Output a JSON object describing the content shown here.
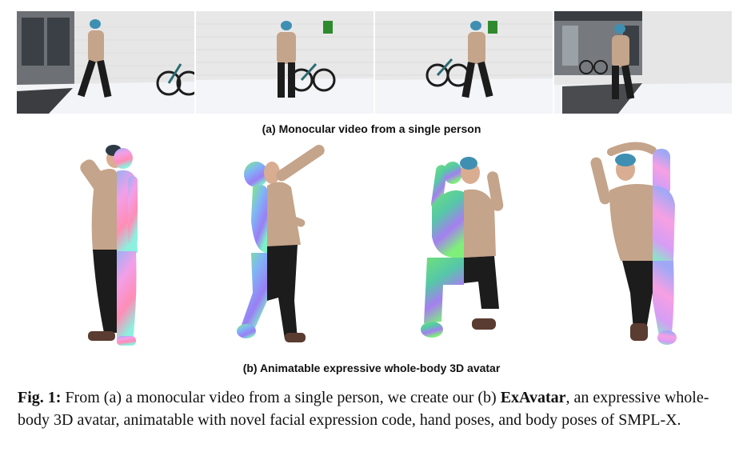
{
  "subcaption_a": "(a) Monocular video from a single person",
  "subcaption_b": "(b) Animatable expressive whole-body 3D avatar",
  "caption": {
    "label": "Fig. 1:",
    "text_before": " From (a) a monocular video from a single person, we create our (b) ",
    "method_name": "ExAvatar",
    "text_after": ", an expressive whole-body 3D avatar, animatable with novel facial expression code, hand poses, and body poses of SMPL-X."
  },
  "colors": {
    "hoodie": "#c4a48a",
    "pants": "#1c1c1c",
    "beanie": "#3f8fb2",
    "skin": "#d8ad92",
    "wall": "#e9e9e9",
    "snow": "#f4f6f8",
    "normal_pink": "#f07fe3",
    "normal_green": "#7ef07a",
    "normal_blue": "#7f8cf5"
  }
}
